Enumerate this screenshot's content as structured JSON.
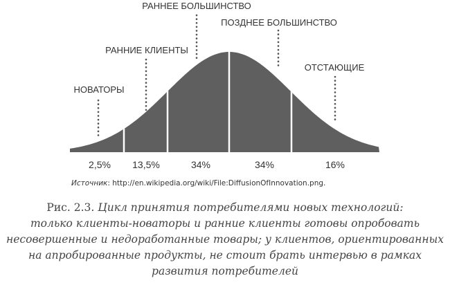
{
  "diagram": {
    "segments": [
      {
        "label": "НОВАТОРЫ",
        "percent": "2,5%"
      },
      {
        "label": "РАННИЕ КЛИЕНТЫ",
        "percent": "13,5%"
      },
      {
        "label": "РАННЕЕ БОЛЬШИНСТВО",
        "percent": "34%"
      },
      {
        "label": "ПОЗДНЕЕ БОЛЬШИНСТВО",
        "percent": "34%"
      },
      {
        "label": "ОТСТАЮЩИЕ",
        "percent": "16%"
      }
    ],
    "curve_color": "#5f5f5f"
  },
  "source": {
    "prefix": "Источник",
    "text": ": http://en.wikipedia.org/wiki/File:DiffusionOfInnovation.png."
  },
  "caption": {
    "figure_label": "Рис. 2.3.",
    "lines": [
      "Цикл принятия потребителями новых технологий:",
      "только клиенты-новаторы и ранние клиенты готовы опробовать",
      "несовершенные и недоработанные товары; у клиентов, ориентированных",
      "на апробированные продукты, не стоит брать интервью в рамках",
      "развития потребителей"
    ]
  }
}
